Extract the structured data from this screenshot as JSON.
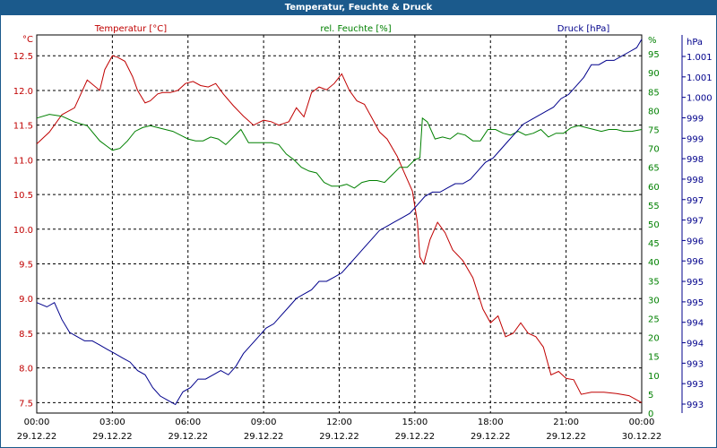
{
  "window": {
    "title": "Temperatur, Feuchte & Druck"
  },
  "colors": {
    "title_bg": "#1b5a8c",
    "temperature": "#c00000",
    "humidity": "#008000",
    "pressure": "#00008b",
    "grid": "#000000"
  },
  "chart_data": {
    "type": "line",
    "grid": true,
    "x_ticks": [
      {
        "time": "00:00",
        "date": "29.12.22"
      },
      {
        "time": "03:00",
        "date": "29.12.22"
      },
      {
        "time": "06:00",
        "date": "29.12.22"
      },
      {
        "time": "09:00",
        "date": "29.12.22"
      },
      {
        "time": "12:00",
        "date": "29.12.22"
      },
      {
        "time": "15:00",
        "date": "29.12.22"
      },
      {
        "time": "18:00",
        "date": "29.12.22"
      },
      {
        "time": "21:00",
        "date": "29.12.22"
      },
      {
        "time": "00:00",
        "date": "30.12.22"
      }
    ],
    "axes": {
      "temperature": {
        "label": "Temperatur [°C]",
        "unit": "°C",
        "range": [
          7.35,
          12.8
        ],
        "ticks": [
          "12.5",
          "12.0",
          "11.5",
          "11.0",
          "10.5",
          "10.0",
          "9.5",
          "9.0",
          "8.5",
          "8.0",
          "7.5"
        ]
      },
      "humidity": {
        "label": "rel. Feuchte [%]",
        "unit": "%",
        "range": [
          0,
          100
        ],
        "ticks": [
          "95",
          "90",
          "85",
          "80",
          "75",
          "70",
          "65",
          "60",
          "55",
          "50",
          "45",
          "40",
          "35",
          "30",
          "25",
          "20",
          "15",
          "10",
          "5",
          "0"
        ]
      },
      "pressure": {
        "label": "Druck [hPa]",
        "unit": "hPa",
        "range": [
          992.7,
          1001.6
        ],
        "ticks": [
          "1.001",
          "1.001",
          "1.000",
          "999",
          "999",
          "998",
          "998",
          "997",
          "997",
          "996",
          "996",
          "995",
          "995",
          "994",
          "994",
          "993",
          "993",
          "993"
        ]
      }
    },
    "series": [
      {
        "name": "Temperatur [°C]",
        "axis": "temperature",
        "x_hours": [
          0,
          0.5,
          1,
          1.5,
          2,
          2.5,
          2.7,
          3,
          3.2,
          3.5,
          3.8,
          4,
          4.3,
          4.5,
          4.8,
          5,
          5.3,
          5.6,
          5.9,
          6.2,
          6.5,
          6.8,
          7.1,
          7.4,
          7.8,
          8.2,
          8.6,
          9,
          9.3,
          9.6,
          10,
          10.3,
          10.6,
          10.9,
          11.2,
          11.5,
          11.8,
          12.1,
          12.4,
          12.7,
          13,
          13.3,
          13.6,
          13.9,
          14.3,
          14.6,
          14.9,
          15.1,
          15.2,
          15.35,
          15.6,
          15.9,
          16.2,
          16.5,
          16.9,
          17.3,
          17.7,
          18,
          18.3,
          18.6,
          18.9,
          19.2,
          19.5,
          19.8,
          20.1,
          20.4,
          20.7,
          21,
          21.3,
          21.6,
          22,
          22.5,
          23,
          23.5,
          24
        ],
        "y": [
          11.23,
          11.4,
          11.65,
          11.75,
          12.15,
          12.0,
          12.3,
          12.5,
          12.48,
          12.42,
          12.2,
          12.0,
          11.82,
          11.85,
          11.95,
          11.97,
          11.97,
          12.0,
          12.1,
          12.13,
          12.07,
          12.05,
          12.1,
          11.95,
          11.78,
          11.63,
          11.5,
          11.57,
          11.55,
          11.5,
          11.55,
          11.75,
          11.62,
          11.97,
          12.05,
          12.01,
          12.1,
          12.24,
          12.0,
          11.85,
          11.8,
          11.6,
          11.4,
          11.3,
          11.05,
          10.8,
          10.55,
          10.1,
          9.6,
          9.5,
          9.85,
          10.1,
          9.95,
          9.7,
          9.55,
          9.3,
          8.85,
          8.65,
          8.75,
          8.45,
          8.5,
          8.65,
          8.5,
          8.45,
          8.3,
          7.9,
          7.95,
          7.85,
          7.83,
          7.62,
          7.65,
          7.65,
          7.63,
          7.6,
          7.5
        ]
      },
      {
        "name": "rel. Feuchte [%]",
        "axis": "humidity",
        "x_hours": [
          0,
          0.5,
          1,
          1.5,
          2,
          2.5,
          2.8,
          3,
          3.3,
          3.6,
          3.9,
          4.2,
          4.5,
          4.8,
          5.1,
          5.4,
          5.7,
          6,
          6.3,
          6.6,
          6.9,
          7.2,
          7.5,
          7.8,
          8.1,
          8.4,
          8.7,
          9,
          9.3,
          9.6,
          9.9,
          10.2,
          10.5,
          10.8,
          11.1,
          11.4,
          11.7,
          12,
          12.3,
          12.6,
          12.9,
          13.2,
          13.5,
          13.8,
          14.1,
          14.4,
          14.7,
          15,
          15.2,
          15.3,
          15.5,
          15.8,
          16.1,
          16.4,
          16.7,
          17,
          17.3,
          17.6,
          17.9,
          18.2,
          18.5,
          18.8,
          19.1,
          19.4,
          19.7,
          20,
          20.3,
          20.6,
          20.9,
          21.2,
          21.5,
          21.8,
          22.1,
          22.4,
          22.7,
          23,
          23.3,
          23.6,
          24
        ],
        "y": [
          78,
          79,
          78.5,
          77,
          76,
          72,
          70.5,
          69.5,
          70,
          72,
          74.5,
          75.5,
          76,
          75.5,
          75,
          74.5,
          73.5,
          72.5,
          72,
          72,
          73,
          72.5,
          71,
          73,
          75,
          71.5,
          71.5,
          71.5,
          71.5,
          71,
          68.5,
          67,
          65,
          64,
          63.5,
          61,
          60,
          60,
          60.5,
          59.5,
          61,
          61.5,
          61.5,
          61,
          63,
          65,
          65,
          67,
          67.5,
          78,
          77,
          72.5,
          73,
          72.5,
          74,
          73.5,
          72,
          72,
          75,
          75,
          74,
          73.5,
          74.5,
          73.5,
          74,
          75,
          73,
          74,
          74,
          75.5,
          76,
          75.5,
          75,
          74.5,
          75,
          75,
          74.5,
          74.5,
          75
        ]
      },
      {
        "name": "Druck [hPa]",
        "axis": "pressure",
        "x_hours": [
          0,
          0.4,
          0.7,
          1,
          1.3,
          1.6,
          1.9,
          2.2,
          2.5,
          2.8,
          3.1,
          3.4,
          3.7,
          4,
          4.3,
          4.6,
          4.9,
          5.2,
          5.5,
          5.8,
          6.1,
          6.4,
          6.7,
          7,
          7.3,
          7.6,
          7.9,
          8.2,
          8.5,
          8.8,
          9.1,
          9.4,
          9.7,
          10,
          10.3,
          10.6,
          10.9,
          11.2,
          11.5,
          11.8,
          12.1,
          12.4,
          12.7,
          13,
          13.3,
          13.6,
          13.9,
          14.2,
          14.5,
          14.8,
          15.1,
          15.4,
          15.7,
          16,
          16.3,
          16.6,
          16.9,
          17.2,
          17.5,
          17.8,
          18.1,
          18.4,
          18.7,
          19,
          19.3,
          19.6,
          19.9,
          20.2,
          20.5,
          20.8,
          21.1,
          21.4,
          21.7,
          22,
          22.3,
          22.6,
          22.9,
          23.2,
          23.5,
          23.8,
          24
        ],
        "y": [
          995.3,
          995.2,
          995.3,
          994.9,
          994.6,
          994.5,
          994.4,
          994.4,
          994.3,
          994.2,
          994.1,
          994.0,
          993.9,
          993.7,
          993.6,
          993.3,
          993.1,
          993.0,
          992.9,
          993.2,
          993.3,
          993.5,
          993.5,
          993.6,
          993.7,
          993.6,
          993.8,
          994.1,
          994.3,
          994.5,
          994.7,
          994.8,
          995.0,
          995.2,
          995.4,
          995.5,
          995.6,
          995.8,
          995.8,
          995.9,
          996.0,
          996.2,
          996.4,
          996.6,
          996.8,
          997.0,
          997.1,
          997.2,
          997.3,
          997.4,
          997.6,
          997.8,
          997.9,
          997.9,
          998.0,
          998.1,
          998.1,
          998.2,
          998.4,
          998.6,
          998.7,
          998.9,
          999.1,
          999.3,
          999.5,
          999.6,
          999.7,
          999.8,
          999.9,
          1000.1,
          1000.2,
          1000.4,
          1000.6,
          1000.9,
          1000.9,
          1001.0,
          1001.0,
          1001.1,
          1001.2,
          1001.3,
          1001.5
        ]
      }
    ]
  }
}
